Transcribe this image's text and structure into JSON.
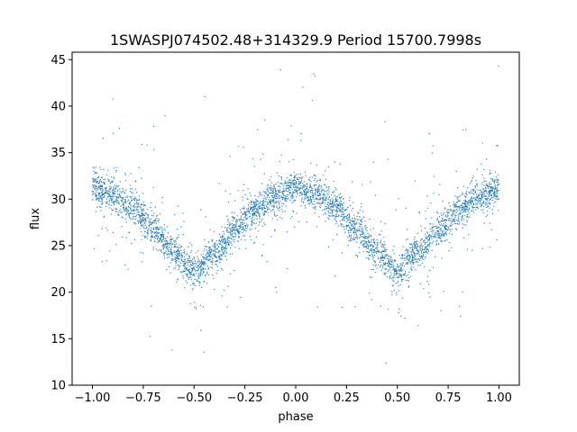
{
  "chart_data": {
    "type": "scatter",
    "title": "1SWASPJ074502.48+314329.9 Period 15700.7998s",
    "xlabel": "phase",
    "ylabel": "flux",
    "xlim": [
      -1.1,
      1.1
    ],
    "ylim": [
      10,
      45.8
    ],
    "xticks": [
      -1.0,
      -0.75,
      -0.5,
      -0.25,
      0.0,
      0.25,
      0.5,
      0.75,
      1.0
    ],
    "xtick_labels": [
      "−1.00",
      "−0.75",
      "−0.50",
      "−0.25",
      "0.00",
      "0.25",
      "0.50",
      "0.75",
      "1.00"
    ],
    "yticks": [
      10,
      15,
      20,
      25,
      30,
      35,
      40,
      45
    ],
    "ytick_labels": [
      "10",
      "15",
      "20",
      "25",
      "30",
      "35",
      "40",
      "45"
    ],
    "grid": false,
    "legend": "none",
    "point_color": "#1f77b4",
    "series": [
      {
        "curve_x": [
          -1.0,
          -0.9,
          -0.8,
          -0.7,
          -0.6,
          -0.5,
          -0.4,
          -0.3,
          -0.2,
          -0.1,
          0.0,
          0.1,
          0.2,
          0.3,
          0.4,
          0.5,
          0.6,
          0.7,
          0.8,
          0.9,
          1.0
        ],
        "curve_y": [
          31.2,
          30.5,
          29.0,
          26.8,
          24.3,
          22.2,
          24.2,
          26.6,
          28.8,
          30.3,
          31.2,
          30.5,
          29.0,
          26.8,
          24.3,
          22.2,
          24.2,
          26.6,
          28.8,
          30.3,
          31.2
        ]
      }
    ]
  }
}
